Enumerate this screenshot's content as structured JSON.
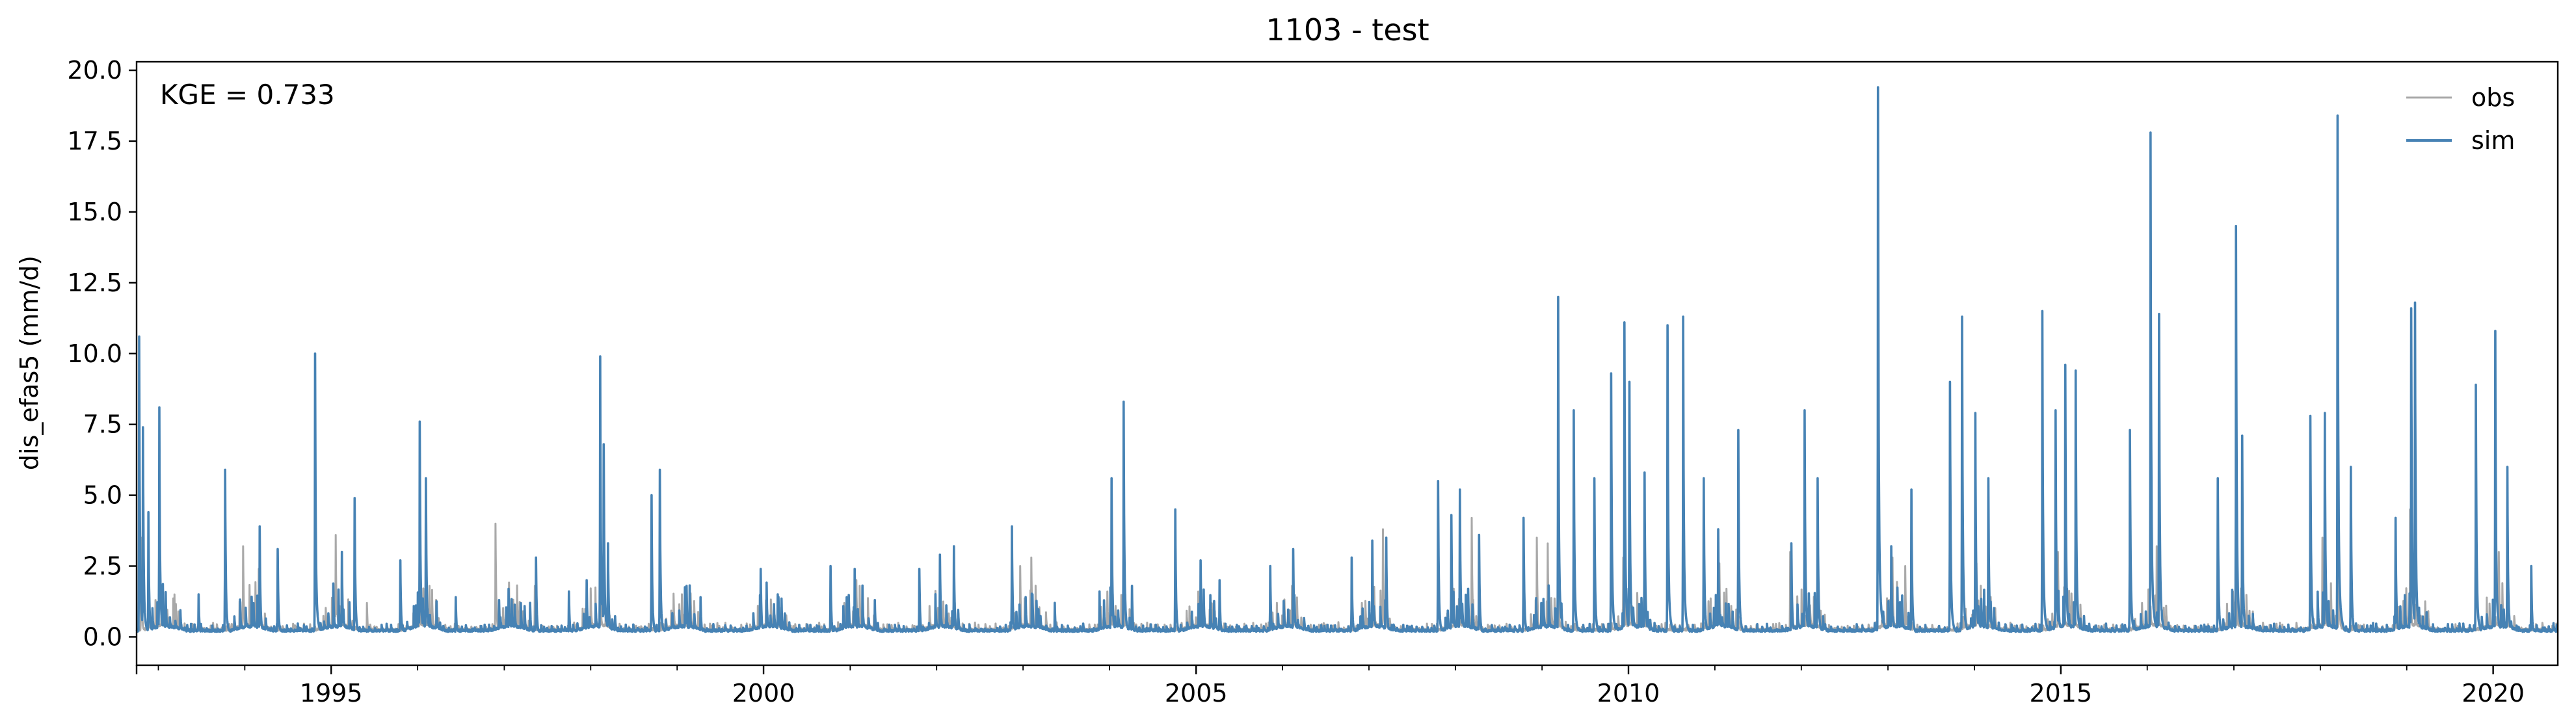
{
  "chart_data": {
    "type": "line",
    "title": "1103 - test",
    "xlabel": "",
    "ylabel": "dis_efas5 (mm/d)",
    "annotation": "KGE = 0.733",
    "xlim": [
      "1992-10-01",
      "2020-09-30"
    ],
    "ylim": [
      -1.0,
      20.3
    ],
    "yticks": [
      0.0,
      2.5,
      5.0,
      7.5,
      10.0,
      12.5,
      15.0,
      17.5,
      20.0
    ],
    "ytick_labels": [
      "0.0",
      "2.5",
      "5.0",
      "7.5",
      "10.0",
      "12.5",
      "15.0",
      "17.5",
      "20.0"
    ],
    "xticks": [
      "1995-01-01",
      "2000-01-01",
      "2005-01-01",
      "2010-01-01",
      "2015-01-01",
      "2020-01-01"
    ],
    "xtick_labels": [
      "1995",
      "2000",
      "2005",
      "2010",
      "2015",
      "2020"
    ],
    "grid": false,
    "legend_position": "top-right",
    "series": [
      {
        "name": "obs",
        "color": "#a9a9a9",
        "baseline": 0.35,
        "peaks": [
          [
            "1992-10-20",
            3.5
          ],
          [
            "1993-03-10",
            1.5
          ],
          [
            "1993-12-25",
            3.2
          ],
          [
            "1994-03-01",
            2.4
          ],
          [
            "1995-01-20",
            3.6
          ],
          [
            "1995-06-01",
            1.2
          ],
          [
            "1996-02-20",
            1.8
          ],
          [
            "1996-11-25",
            4.0
          ],
          [
            "1997-05-10",
            1.8
          ],
          [
            "1998-03-15",
            1.0
          ],
          [
            "1999-02-05",
            1.5
          ],
          [
            "1999-12-20",
            1.6
          ],
          [
            "2000-10-10",
            1.3
          ],
          [
            "2001-02-10",
            1.8
          ],
          [
            "2002-12-20",
            2.5
          ],
          [
            "2003-02-05",
            2.8
          ],
          [
            "2004-01-15",
            1.5
          ],
          [
            "2005-01-10",
            1.6
          ],
          [
            "2006-02-10",
            1.8
          ],
          [
            "2007-03-01",
            3.8
          ],
          [
            "2008-03-10",
            4.2
          ],
          [
            "2008-12-10",
            3.5
          ],
          [
            "2009-01-25",
            3.3
          ],
          [
            "2009-12-10",
            2.8
          ],
          [
            "2011-01-20",
            2.6
          ],
          [
            "2011-11-15",
            3.0
          ],
          [
            "2013-01-20",
            2.8
          ],
          [
            "2013-03-15",
            2.5
          ],
          [
            "2014-01-10",
            2.6
          ],
          [
            "2014-12-20",
            3.0
          ],
          [
            "2016-02-10",
            3.2
          ],
          [
            "2017-01-15",
            2.8
          ],
          [
            "2018-01-10",
            3.5
          ],
          [
            "2018-03-20",
            3.8
          ],
          [
            "2019-01-15",
            4.5
          ],
          [
            "2020-01-25",
            3.0
          ]
        ]
      },
      {
        "name": "sim",
        "color": "#4682b4",
        "baseline": 0.3,
        "peaks": [
          [
            "1992-10-12",
            10.6
          ],
          [
            "1992-10-28",
            7.4
          ],
          [
            "1992-11-20",
            4.4
          ],
          [
            "1993-01-05",
            8.1
          ],
          [
            "1993-06-20",
            1.5
          ],
          [
            "1993-10-10",
            5.9
          ],
          [
            "1994-03-05",
            3.9
          ],
          [
            "1994-05-20",
            3.1
          ],
          [
            "1994-10-25",
            10.0
          ],
          [
            "1995-02-15",
            3.0
          ],
          [
            "1995-04-10",
            4.9
          ],
          [
            "1995-10-20",
            2.7
          ],
          [
            "1996-01-10",
            7.6
          ],
          [
            "1996-02-05",
            5.6
          ],
          [
            "1996-06-10",
            1.4
          ],
          [
            "1996-12-10",
            1.3
          ],
          [
            "1997-04-20",
            1.2
          ],
          [
            "1997-05-15",
            2.8
          ],
          [
            "1997-10-01",
            1.6
          ],
          [
            "1997-12-15",
            2.0
          ],
          [
            "1998-02-10",
            9.9
          ],
          [
            "1998-02-25",
            6.8
          ],
          [
            "1998-03-15",
            3.3
          ],
          [
            "1998-09-15",
            5.0
          ],
          [
            "1998-10-20",
            5.9
          ],
          [
            "1999-02-10",
            1.8
          ],
          [
            "1999-04-10",
            1.4
          ],
          [
            "1999-12-20",
            2.4
          ],
          [
            "2000-03-01",
            1.5
          ],
          [
            "2000-10-10",
            2.5
          ],
          [
            "2001-01-20",
            2.4
          ],
          [
            "2001-04-15",
            1.3
          ],
          [
            "2001-10-20",
            2.4
          ],
          [
            "2002-01-15",
            2.9
          ],
          [
            "2002-03-15",
            3.2
          ],
          [
            "2002-11-15",
            3.9
          ],
          [
            "2003-02-10",
            1.5
          ],
          [
            "2003-05-15",
            1.2
          ],
          [
            "2003-11-20",
            1.6
          ],
          [
            "2004-01-10",
            5.6
          ],
          [
            "2004-03-01",
            8.3
          ],
          [
            "2004-04-05",
            1.8
          ],
          [
            "2004-10-05",
            4.5
          ],
          [
            "2005-01-20",
            2.7
          ],
          [
            "2005-04-10",
            2.0
          ],
          [
            "2005-11-10",
            2.5
          ],
          [
            "2006-02-15",
            3.1
          ],
          [
            "2006-10-20",
            2.8
          ],
          [
            "2007-01-15",
            3.4
          ],
          [
            "2007-03-15",
            3.5
          ],
          [
            "2007-10-20",
            5.5
          ],
          [
            "2007-12-15",
            4.3
          ],
          [
            "2008-01-20",
            5.2
          ],
          [
            "2008-04-10",
            3.6
          ],
          [
            "2008-10-15",
            4.2
          ],
          [
            "2009-03-10",
            12.0
          ],
          [
            "2009-05-15",
            8.0
          ],
          [
            "2009-08-10",
            5.6
          ],
          [
            "2009-10-20",
            9.3
          ],
          [
            "2009-12-15",
            11.1
          ],
          [
            "2010-01-05",
            9.0
          ],
          [
            "2010-03-10",
            5.8
          ],
          [
            "2010-06-15",
            11.0
          ],
          [
            "2010-08-20",
            11.3
          ],
          [
            "2010-11-15",
            5.6
          ],
          [
            "2011-01-15",
            3.8
          ],
          [
            "2011-04-10",
            7.3
          ],
          [
            "2011-11-20",
            3.3
          ],
          [
            "2012-01-15",
            8.0
          ],
          [
            "2012-03-10",
            5.6
          ],
          [
            "2012-11-20",
            19.4
          ],
          [
            "2013-01-15",
            3.2
          ],
          [
            "2013-04-10",
            5.2
          ],
          [
            "2013-09-20",
            9.0
          ],
          [
            "2013-11-10",
            11.3
          ],
          [
            "2014-01-05",
            7.9
          ],
          [
            "2014-03-01",
            5.6
          ],
          [
            "2014-10-15",
            11.5
          ],
          [
            "2014-12-10",
            8.0
          ],
          [
            "2015-01-20",
            9.6
          ],
          [
            "2015-03-05",
            9.4
          ],
          [
            "2015-10-20",
            7.3
          ],
          [
            "2016-01-15",
            17.8
          ],
          [
            "2016-02-20",
            11.4
          ],
          [
            "2016-10-25",
            5.6
          ],
          [
            "2017-01-10",
            14.5
          ],
          [
            "2017-02-05",
            7.1
          ],
          [
            "2017-11-20",
            7.8
          ],
          [
            "2018-01-20",
            7.9
          ],
          [
            "2018-03-15",
            18.4
          ],
          [
            "2018-05-10",
            6.0
          ],
          [
            "2018-11-15",
            4.2
          ],
          [
            "2019-01-20",
            11.6
          ],
          [
            "2019-02-05",
            11.8
          ],
          [
            "2019-10-20",
            8.9
          ],
          [
            "2020-01-10",
            10.8
          ],
          [
            "2020-03-01",
            6.0
          ],
          [
            "2020-06-10",
            2.5
          ]
        ]
      }
    ]
  }
}
